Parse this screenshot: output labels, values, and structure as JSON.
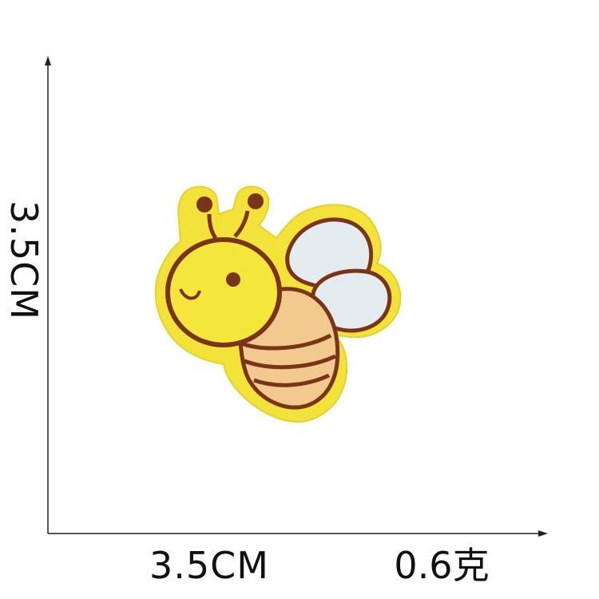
{
  "dimensions": {
    "height_label": "3.5CM",
    "width_label": "3.5CM",
    "weight_label": "0.6克"
  },
  "product": {
    "name_icon": "bee-patch-icon"
  },
  "colors": {
    "felt_backing": "#f2e23a",
    "face": "#f5e63c",
    "outline": "#7a3418",
    "body_stripe_light": "#f2c98f",
    "wing": "#e4ecef",
    "axis": "#222222"
  }
}
